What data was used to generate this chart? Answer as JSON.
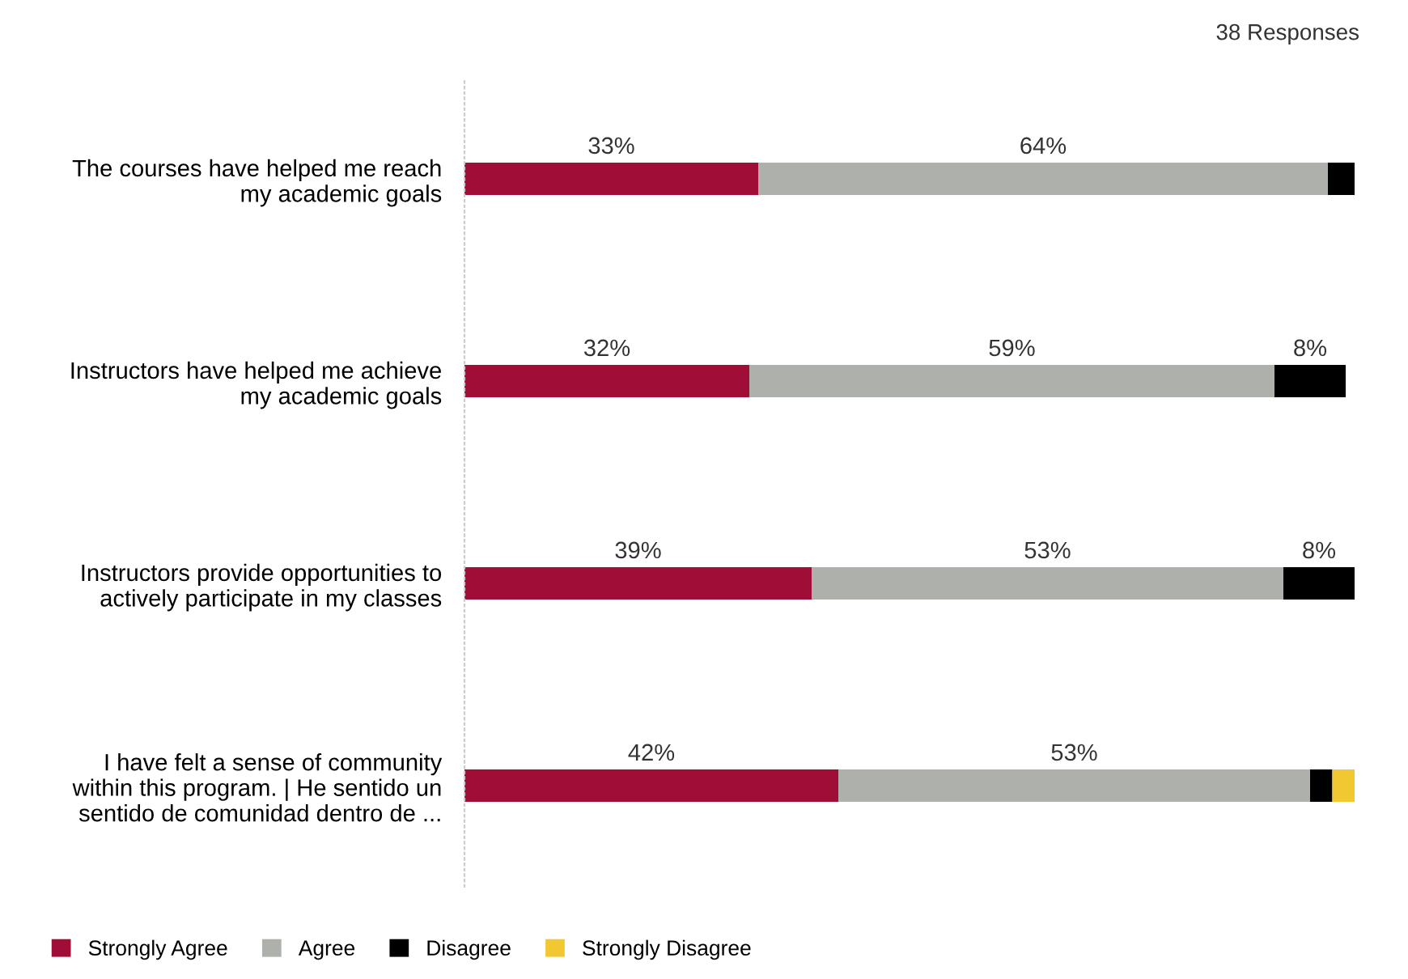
{
  "chart_data": {
    "type": "bar",
    "orientation": "horizontal",
    "stacked": true,
    "categories": [
      "The courses have helped me reach\nmy academic goals",
      "Instructors have helped me achieve\nmy academic goals",
      "Instructors provide opportunities to\nactively participate in my classes",
      "I have felt a sense of community\nwithin this program. | He sentido un\nsentido de comunidad dentro de ..."
    ],
    "series": [
      {
        "name": "Strongly Agree",
        "color": "#a00e37",
        "values": [
          33,
          32,
          39,
          42
        ],
        "value_labels": [
          "33%",
          "32%",
          "39%",
          "42%"
        ]
      },
      {
        "name": "Agree",
        "color": "#adb0ab",
        "values": [
          64,
          59,
          53,
          53
        ],
        "value_labels": [
          "64%",
          "59%",
          "53%",
          "53%"
        ]
      },
      {
        "name": "Disagree",
        "color": "#000000",
        "values": [
          3,
          8,
          8,
          2.5
        ],
        "value_labels": [
          null,
          "8%",
          "8%",
          null
        ]
      },
      {
        "name": "Strongly Disagree",
        "color": "#f2c832",
        "values": [
          null,
          null,
          null,
          2.5
        ],
        "value_labels": [
          null,
          null,
          null,
          null
        ]
      }
    ],
    "annotations": [
      "38 Responses"
    ],
    "legend": "bottom left",
    "grid": false
  }
}
